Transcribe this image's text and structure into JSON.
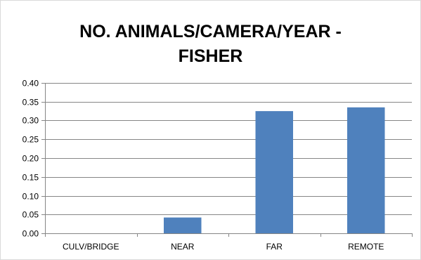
{
  "chart_data": {
    "type": "bar",
    "title_lines": [
      "NO. ANIMALS/CAMERA/YEAR -",
      "FISHER"
    ],
    "categories": [
      "CULV/BRIDGE",
      "NEAR",
      "FAR",
      "REMOTE"
    ],
    "values": [
      0.0,
      0.042,
      0.325,
      0.335
    ],
    "xlabel": "",
    "ylabel": "",
    "ylim": [
      0,
      0.4
    ],
    "yticks": [
      "0.00",
      "0.05",
      "0.10",
      "0.15",
      "0.20",
      "0.25",
      "0.30",
      "0.35",
      "0.40"
    ],
    "grid": true,
    "legend": "none",
    "bar_color": "#4f81bd",
    "grid_color": "#868686"
  }
}
